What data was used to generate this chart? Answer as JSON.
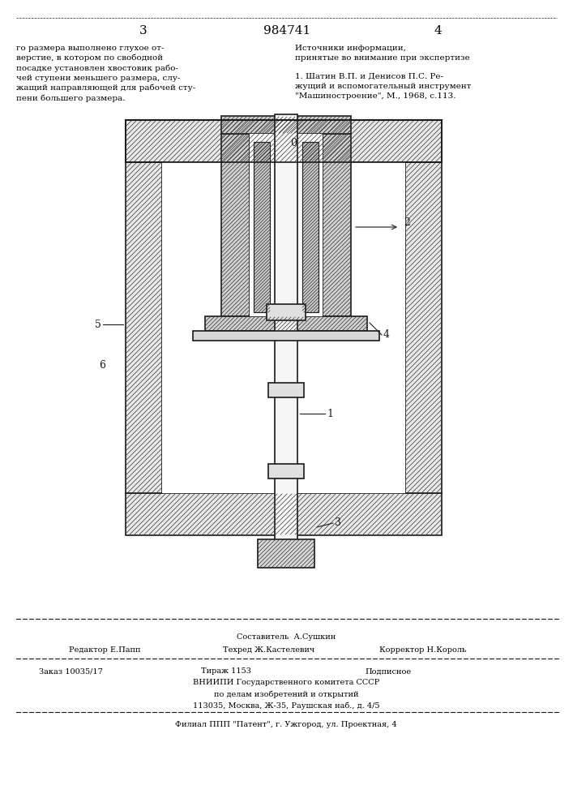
{
  "page_number_left": "3",
  "patent_number": "984741",
  "page_number_right": "4",
  "text_left": "го размера выполнено глухое от-\nверстие, в котором по свободной\nпосадке установлен хвостовик рабо-\nчей ступени меньшего размера, слу-\nжащий направляющей для рабочей сту-\nпени большего размера.",
  "text_right_title": "Источники информации,\nпринятые во внимание при экспертизе",
  "text_right_body": "1. Шатин В.П. и Денисов П.С. Ре-\nжущий и вспомогательный инструмент\n\"Машиностроение\", М., 1968, с.113.",
  "footer_line1_composer": "Составитель  А.Сушкин",
  "footer_line2_left": "Редактор Е.Папп",
  "footer_line2_mid": "Техред Ж.Кастелевич",
  "footer_line2_right": "Корректор Н.Король",
  "footer_order": "Заказ 10035/17",
  "footer_tirazh": "Тираж 1153",
  "footer_podpisnoe": "Подписное",
  "footer_org": "ВНИИПИ Государственного комитета СССР",
  "footer_org2": "по делам изобретений и открытий",
  "footer_addr": "113035, Москва, Ж-35, Раушская наб., д. 4/5",
  "footer_filial": "Филиал ППП \"Патент\", г. Ужгород, ул. Проектная, 4",
  "bg_color": "#ffffff",
  "text_color": "#000000",
  "label_1": "1",
  "label_2": "2",
  "label_3": "3",
  "label_4": "4",
  "label_5": "5",
  "label_6": "6"
}
